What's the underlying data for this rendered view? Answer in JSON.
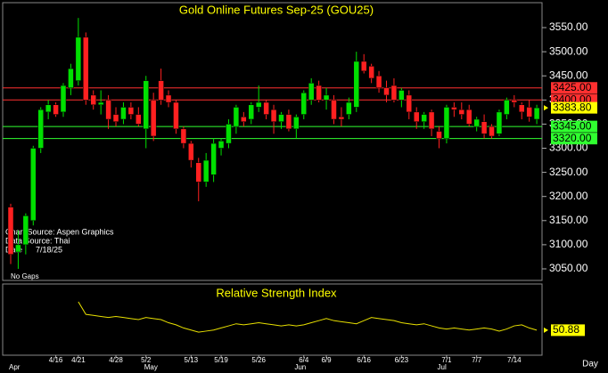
{
  "chart_data": {
    "type": "candlestick",
    "title": "Gold Online Futures Sep-25 (GOU25)",
    "notes": [
      "Chart Source: Aspen Graphics",
      "Data Source: Thai",
      "Date      7/18/25",
      "No Gaps"
    ],
    "categories": [
      null,
      null,
      null,
      null,
      null,
      null,
      "4/16",
      null,
      null,
      "4/21",
      null,
      null,
      null,
      null,
      "4/28",
      null,
      null,
      null,
      "5/2",
      null,
      null,
      null,
      null,
      null,
      "5/13",
      null,
      null,
      null,
      "5/19",
      null,
      null,
      null,
      null,
      "5/26",
      null,
      null,
      null,
      null,
      null,
      "6/4",
      null,
      null,
      "6/9",
      null,
      null,
      null,
      null,
      "6/16",
      null,
      null,
      null,
      null,
      "6/23",
      null,
      null,
      null,
      null,
      null,
      "7/1",
      null,
      null,
      null,
      "7/7",
      null,
      null,
      null,
      null,
      "7/14",
      null,
      null,
      null
    ],
    "months": [
      "Apr",
      null,
      null,
      null,
      null,
      null,
      null,
      null,
      null,
      null,
      null,
      null,
      null,
      null,
      null,
      null,
      null,
      null,
      "May",
      null,
      null,
      null,
      null,
      null,
      null,
      null,
      null,
      null,
      null,
      null,
      null,
      null,
      null,
      null,
      null,
      null,
      null,
      null,
      "Jun",
      null,
      null,
      null,
      null,
      null,
      null,
      null,
      null,
      null,
      null,
      null,
      null,
      null,
      null,
      null,
      null,
      null,
      null,
      "Jul",
      null,
      null,
      null,
      null,
      null,
      null,
      null,
      null,
      null,
      null,
      null,
      null,
      null
    ],
    "open": [
      3178,
      3085,
      3100,
      3150,
      3300,
      3375,
      3390,
      3375,
      3425,
      3440,
      3530,
      3410,
      3390,
      3400,
      3370,
      3360,
      3385,
      3370,
      3340,
      3400,
      3440,
      3410,
      3395,
      3340,
      3310,
      3270,
      3230,
      3245,
      3300,
      3310,
      3345,
      3365,
      3360,
      3385,
      3395,
      3380,
      3355,
      3370,
      3340,
      3370,
      3400,
      3430,
      3400,
      3400,
      3365,
      3370,
      3385,
      3480,
      3470,
      3450,
      3425,
      3430,
      3400,
      3410,
      3375,
      3355,
      3375,
      3335,
      3320,
      3385,
      3380,
      3380,
      3345,
      3355,
      3345,
      3330,
      3370,
      3400,
      3390,
      3385,
      3360
    ],
    "high": [
      3185,
      3130,
      3165,
      3305,
      3385,
      3400,
      3395,
      3435,
      3475,
      3570,
      3540,
      3420,
      3420,
      3410,
      3385,
      3395,
      3395,
      3385,
      3450,
      3415,
      3465,
      3420,
      3400,
      3345,
      3315,
      3280,
      3290,
      3320,
      3320,
      3360,
      3390,
      3375,
      3395,
      3430,
      3400,
      3390,
      3375,
      3380,
      3370,
      3420,
      3445,
      3440,
      3425,
      3410,
      3385,
      3405,
      3500,
      3495,
      3475,
      3460,
      3440,
      3445,
      3425,
      3420,
      3385,
      3375,
      3380,
      3345,
      3390,
      3395,
      3395,
      3390,
      3365,
      3370,
      3350,
      3380,
      3405,
      3410,
      3395,
      3400,
      3390
    ],
    "low": [
      3060,
      3050,
      3080,
      3140,
      3290,
      3360,
      3365,
      3365,
      3410,
      3430,
      3390,
      3380,
      3370,
      3340,
      3345,
      3350,
      3360,
      3345,
      3300,
      3315,
      3390,
      3385,
      3330,
      3300,
      3260,
      3190,
      3220,
      3230,
      3285,
      3300,
      3330,
      3345,
      3350,
      3375,
      3360,
      3330,
      3340,
      3335,
      3320,
      3360,
      3390,
      3395,
      3380,
      3350,
      3345,
      3360,
      3375,
      3455,
      3435,
      3415,
      3395,
      3395,
      3385,
      3360,
      3340,
      3340,
      3325,
      3300,
      3310,
      3365,
      3360,
      3345,
      3335,
      3320,
      3320,
      3325,
      3360,
      3385,
      3360,
      3355,
      3350
    ],
    "close": [
      3080,
      3100,
      3160,
      3300,
      3380,
      3390,
      3370,
      3430,
      3465,
      3530,
      3400,
      3390,
      3395,
      3360,
      3355,
      3385,
      3370,
      3350,
      3440,
      3325,
      3400,
      3395,
      3340,
      3310,
      3275,
      3230,
      3275,
      3310,
      3315,
      3350,
      3385,
      3355,
      3390,
      3395,
      3370,
      3355,
      3370,
      3340,
      3365,
      3415,
      3435,
      3400,
      3410,
      3360,
      3360,
      3395,
      3480,
      3460,
      3445,
      3425,
      3410,
      3400,
      3420,
      3375,
      3355,
      3370,
      3340,
      3320,
      3385,
      3380,
      3370,
      3350,
      3360,
      3330,
      3325,
      3375,
      3400,
      3395,
      3375,
      3365,
      3383.8
    ],
    "last_label": "3383.80",
    "up_color": "#00e000",
    "down_color": "#ff2020",
    "ylim": [
      3026,
      3598
    ],
    "yticks": [
      {
        "value": 3050,
        "label": "3050.00"
      },
      {
        "value": 3100,
        "label": "3100.00"
      },
      {
        "value": 3150,
        "label": "3150.00"
      },
      {
        "value": 3200,
        "label": "3200.00"
      },
      {
        "value": 3250,
        "label": "3250.00"
      },
      {
        "value": 3300,
        "label": "3300.00"
      },
      {
        "value": 3350,
        "label": "3350.00"
      },
      {
        "value": 3400,
        "label": "3400.00"
      },
      {
        "value": 3450,
        "label": "3450.00"
      },
      {
        "value": 3500,
        "label": "3500.00"
      },
      {
        "value": 3550,
        "label": "3550.00"
      }
    ],
    "levels": [
      {
        "value": 3425,
        "label": "3425.00",
        "color": "#ff3030"
      },
      {
        "value": 3400,
        "label": "3400.00",
        "color": "#ff3030"
      },
      {
        "value": 3345,
        "label": "3345.00",
        "color": "#30ff30"
      },
      {
        "value": 3320,
        "label": "3320.00",
        "color": "#30ff30"
      }
    ],
    "rsi": {
      "title": "Relative Strength Index",
      "color": "#e8e000",
      "ylim": [
        27,
        95
      ],
      "values": [
        null,
        null,
        null,
        null,
        null,
        null,
        null,
        null,
        null,
        78,
        66,
        65,
        64,
        63,
        64,
        63,
        62,
        61,
        63,
        62,
        61,
        58,
        56,
        53,
        51,
        49,
        50,
        51,
        53,
        55,
        57,
        56,
        57,
        58,
        57,
        56,
        55,
        56,
        55,
        56,
        58,
        60,
        62,
        60,
        59,
        58,
        57,
        60,
        63,
        62,
        61,
        60,
        58,
        57,
        56,
        57,
        55,
        53,
        52,
        53,
        52,
        51,
        52,
        53,
        52,
        50,
        52,
        55,
        56,
        53,
        50.88
      ]
    },
    "x_unit": "Day"
  }
}
